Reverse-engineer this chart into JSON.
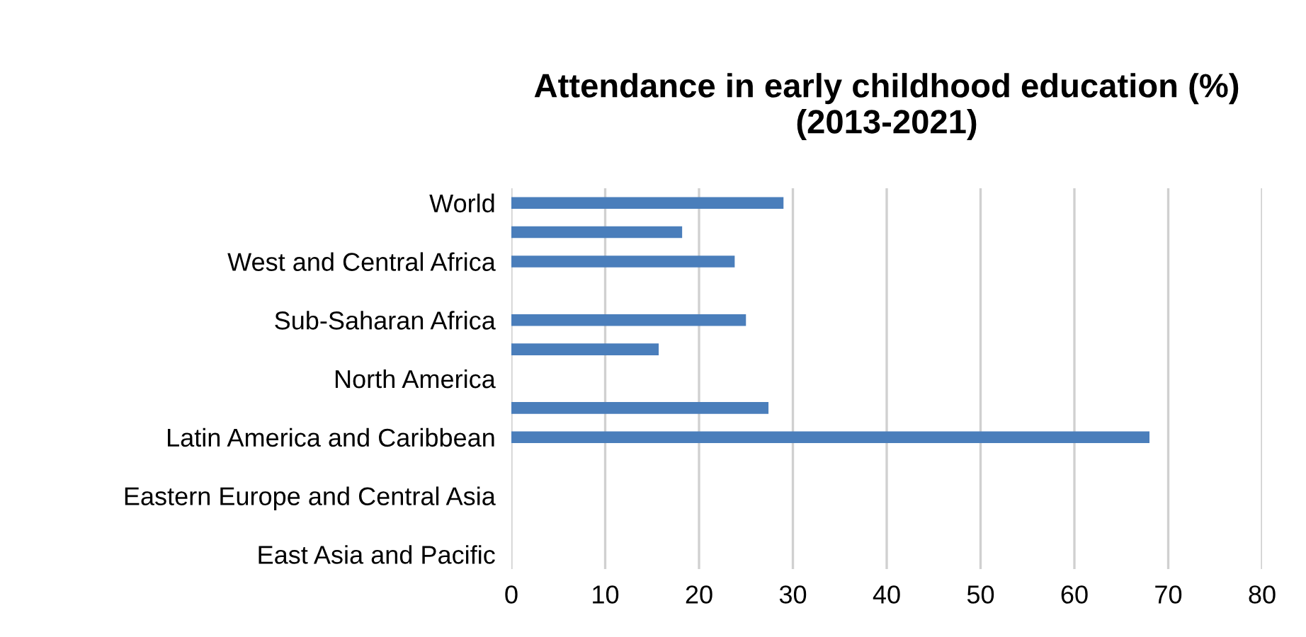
{
  "chart_data": {
    "type": "bar",
    "orientation": "horizontal",
    "title": "Attendance in early childhood education (%)\n(2013-2021)",
    "categories": [
      "World",
      null,
      "West and Central Africa",
      null,
      "Sub-Saharan Africa",
      null,
      "North America",
      null,
      "Latin America and Caribbean",
      null,
      "Eastern Europe and Central Asia",
      null,
      "East Asia and Pacific"
    ],
    "values": [
      29.0,
      18.2,
      23.8,
      null,
      25.0,
      15.7,
      null,
      27.4,
      68.0,
      null,
      null,
      null,
      null
    ],
    "color": "#4a7ebb",
    "xlim": [
      0,
      80
    ],
    "xticks": [
      0,
      10,
      20,
      30,
      40,
      50,
      60,
      70,
      80
    ],
    "grid": "x"
  }
}
